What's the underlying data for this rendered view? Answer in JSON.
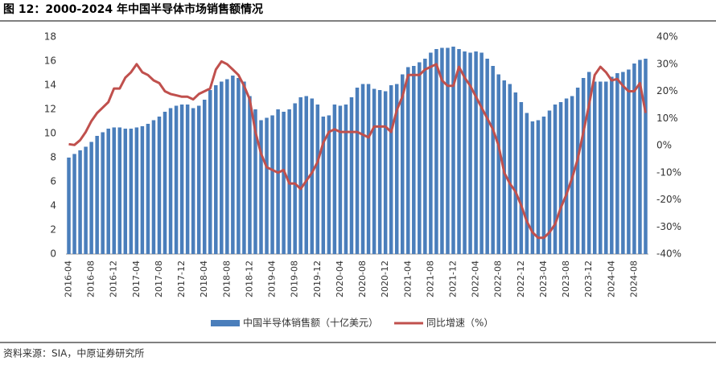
{
  "chart_data": {
    "type": "bar-line",
    "title": "图 12：2000-2024 年中国半导体市场销售额情况",
    "source": "资料来源：SIA，中原证券研究所",
    "categories": [
      "2016-04",
      null,
      null,
      null,
      "2016-08",
      null,
      null,
      null,
      "2016-12",
      null,
      null,
      null,
      "2017-04",
      null,
      null,
      null,
      "2017-08",
      null,
      null,
      null,
      "2017-12",
      null,
      null,
      null,
      "2018-04",
      null,
      null,
      null,
      "2018-08",
      null,
      null,
      null,
      "2018-12",
      null,
      null,
      null,
      "2019-04",
      null,
      null,
      null,
      "2019-08",
      null,
      null,
      null,
      "2019-12",
      null,
      null,
      null,
      "2020-04",
      null,
      null,
      null,
      "2020-08",
      null,
      null,
      null,
      "2020-12",
      null,
      null,
      null,
      "2021-04",
      null,
      null,
      null,
      "2021-08",
      null,
      null,
      null,
      "2021-12",
      null,
      null,
      null,
      "2022-04",
      null,
      null,
      null,
      "2022-08",
      null,
      null,
      null,
      "2022-12",
      null,
      null,
      null,
      "2023-04",
      null,
      null,
      null,
      "2023-08",
      null,
      null,
      null,
      "2023-12",
      null,
      null,
      null,
      "2024-04",
      null,
      null,
      null,
      "2024-08",
      null,
      null
    ],
    "series": [
      {
        "name": "中国半导体销售额（十亿美元）",
        "kind": "bar",
        "color": "#4a7ebb",
        "axis": "y",
        "values": [
          8.0,
          8.3,
          8.6,
          8.9,
          9.3,
          9.8,
          10.1,
          10.4,
          10.5,
          10.5,
          10.4,
          10.4,
          10.5,
          10.6,
          10.8,
          11.1,
          11.4,
          11.8,
          12.1,
          12.3,
          12.4,
          12.4,
          12.1,
          12.3,
          12.8,
          13.6,
          14.0,
          14.3,
          14.5,
          14.8,
          14.6,
          14.3,
          13.1,
          12.0,
          11.1,
          11.3,
          11.5,
          12.0,
          11.8,
          12.0,
          12.5,
          13.0,
          13.1,
          12.9,
          12.4,
          11.4,
          11.5,
          12.4,
          12.3,
          12.4,
          13.0,
          13.8,
          14.1,
          14.1,
          13.7,
          13.6,
          13.5,
          14.0,
          14.1,
          14.9,
          15.5,
          15.6,
          15.9,
          16.2,
          16.7,
          17.0,
          17.1,
          17.1,
          17.2,
          17.0,
          16.8,
          16.7,
          16.8,
          16.7,
          16.2,
          15.6,
          14.9,
          14.4,
          14.1,
          13.4,
          12.6,
          11.7,
          11.0,
          11.1,
          11.4,
          11.9,
          12.4,
          12.6,
          12.9,
          13.1,
          13.8,
          14.6,
          15.1,
          14.3,
          14.3,
          14.3,
          14.7,
          15.0,
          15.1,
          15.3,
          15.8,
          16.1,
          16.2
        ]
      },
      {
        "name": "同比增速（%）",
        "kind": "line",
        "color": "#c0504d",
        "axis": "y2",
        "values": [
          0.5,
          0.2,
          2,
          5,
          9,
          12,
          14,
          16,
          21,
          21,
          25,
          27,
          30,
          27,
          26,
          24,
          23,
          20,
          19,
          18.5,
          18,
          18,
          17,
          19,
          20,
          21,
          28,
          31,
          30,
          28,
          26,
          22,
          17,
          5,
          -3,
          -8,
          -9,
          -10,
          -9,
          -14,
          -14,
          -16,
          -13,
          -10,
          -6,
          1,
          5,
          6,
          5,
          5,
          5,
          5,
          4,
          3,
          7,
          7,
          7,
          5,
          13,
          18,
          26,
          26,
          26,
          28,
          29,
          30,
          24,
          22,
          22,
          29,
          25,
          22,
          18,
          14,
          10,
          6,
          0,
          -10,
          -14,
          -17,
          -22,
          -28,
          -32,
          -34,
          -34,
          -32,
          -29,
          -23,
          -18,
          -12,
          -5,
          5,
          15,
          26,
          29,
          27,
          24,
          24.5,
          22,
          20,
          20,
          23,
          12
        ]
      }
    ],
    "ylim": [
      0,
      18
    ],
    "yticks": [
      0,
      2,
      4,
      6,
      8,
      10,
      12,
      14,
      16,
      18
    ],
    "y2lim": [
      -40,
      40
    ],
    "y2ticks": [
      {
        "value": -40,
        "label": "-40%"
      },
      {
        "value": -30,
        "label": "-30%"
      },
      {
        "value": -20,
        "label": "-20%"
      },
      {
        "value": -10,
        "label": "-10%"
      },
      {
        "value": 0,
        "label": "0%"
      },
      {
        "value": 10,
        "label": "10%"
      },
      {
        "value": 20,
        "label": "20%"
      },
      {
        "value": 30,
        "label": "30%"
      },
      {
        "value": 40,
        "label": "40%"
      }
    ]
  }
}
